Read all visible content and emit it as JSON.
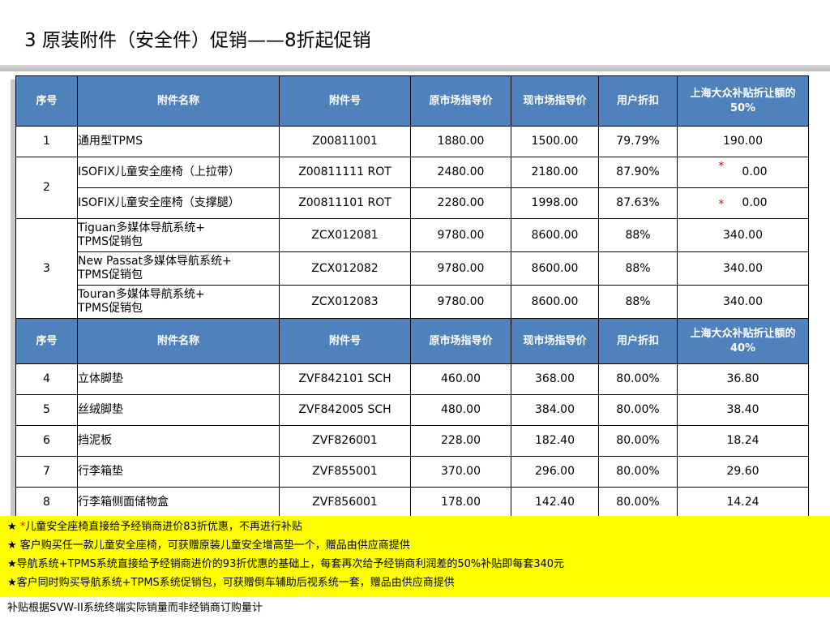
{
  "title": "3   原装附件（安全件）促销——8折起促销",
  "table1": {
    "headers": [
      "序号",
      "附件名称",
      "附件号",
      "原市场指导价",
      "现市场指导价",
      "用户折扣",
      "上海大众补贴折让额的50%"
    ],
    "rows": [
      {
        "seq": "1",
        "name": "通用型TPMS",
        "part": "Z00811001",
        "orig": "1880.00",
        "curr": "1500.00",
        "disc": "79.79%",
        "sub": "190.00"
      },
      {
        "seq": "2",
        "name": "ISOFIX儿童安全座椅（上拉带）",
        "part": "Z00811111  ROT",
        "orig": "2480.00",
        "curr": "2180.00",
        "disc": "87.90%",
        "star": "*",
        "sub": "0.00"
      },
      {
        "name": "ISOFIX儿童安全座椅（支撑腿）",
        "part": "Z00811101  ROT",
        "orig": "2280.00",
        "curr": "1998.00",
        "disc": "87.63%",
        "star": "*",
        "sub": "0.00"
      },
      {
        "seq": "3",
        "name_l1": "Tiguan多媒体导航系统+",
        "name_l2": "TPMS促销包",
        "part": "ZCX012081",
        "orig": "9780.00",
        "curr": "8600.00",
        "disc": "88%",
        "sub": "340.00"
      },
      {
        "name_l1": "New Passat多媒体导航系统+",
        "name_l2": "TPMS促销包",
        "part": "ZCX012082",
        "orig": "9780.00",
        "curr": "8600.00",
        "disc": "88%",
        "sub": "340.00"
      },
      {
        "name_l1": "Touran多媒体导航系统+",
        "name_l2": "TPMS促销包",
        "part": "ZCX012083",
        "orig": "9780.00",
        "curr": "8600.00",
        "disc": "88%",
        "sub": "340.00"
      }
    ]
  },
  "table2": {
    "headers": [
      "序号",
      "附件名称",
      "附件号",
      "原市场指导价",
      "现市场指导价",
      "用户折扣",
      "上海大众补贴折让额的40%"
    ],
    "rows": [
      {
        "seq": "4",
        "name": "立体脚垫",
        "part": "ZVF842101  SCH",
        "orig": "460.00",
        "curr": "368.00",
        "disc": "80.00%",
        "sub": "36.80"
      },
      {
        "seq": "5",
        "name": "丝绒脚垫",
        "part": "ZVF842005  SCH",
        "orig": "480.00",
        "curr": "384.00",
        "disc": "80.00%",
        "sub": "38.40"
      },
      {
        "seq": "6",
        "name": "挡泥板",
        "part": "ZVF826001",
        "orig": "228.00",
        "curr": "182.40",
        "disc": "80.00%",
        "sub": "18.24"
      },
      {
        "seq": "7",
        "name": "行李箱垫",
        "part": "ZVF855001",
        "orig": "370.00",
        "curr": "296.00",
        "disc": "80.00%",
        "sub": "29.60"
      },
      {
        "seq": "8",
        "name": "行李箱侧面储物盒",
        "part": "ZVF856001",
        "orig": "178.00",
        "curr": "142.40",
        "disc": "80.00%",
        "sub": "14.24"
      }
    ]
  },
  "notes": {
    "n1_star": "★ ",
    "n1_red": "*",
    "n1_text": "儿童安全座椅直接给予经销商进价83折优惠，不再进行补贴",
    "n2": "★ 客户购买任一款儿童安全座椅，可获赠原装儿童安全增高垫一个，赠品由供应商提供",
    "n3": "★导航系统+TPMS系统直接给予经销商进价的93折优惠的基础上，每套再次给予经销商利润差的50%补贴即每套340元",
    "n4": "★客户同时购买导航系统+TPMS系统促销包，可获赠倒车辅助后视系统一套，赠品由供应商提供"
  },
  "footer": "补贴根据SVW-II系统终端实际销量而非经销商订购量计",
  "colors": {
    "header_bg": "#4f81bd",
    "note_bg": "#ffff00",
    "star_red": "#e00000"
  }
}
